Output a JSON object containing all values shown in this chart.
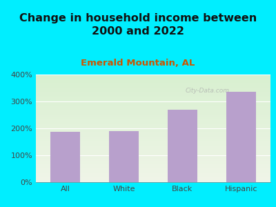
{
  "title": "Change in household income between\n2000 and 2022",
  "subtitle": "Emerald Mountain, AL",
  "categories": [
    "All",
    "White",
    "Black",
    "Hispanic"
  ],
  "values": [
    188,
    191,
    268,
    336
  ],
  "bar_color": "#b8a0cc",
  "title_fontsize": 11.5,
  "subtitle_fontsize": 9.5,
  "subtitle_color": "#cc5500",
  "background_outer": "#00eeff",
  "ylim": [
    0,
    400
  ],
  "yticks": [
    0,
    100,
    200,
    300,
    400
  ],
  "ytick_labels": [
    "0%",
    "100%",
    "200%",
    "300%",
    "400%"
  ],
  "watermark_text": "City-Data.com",
  "grid_color": "#ffffff",
  "tick_label_color": "#444444"
}
